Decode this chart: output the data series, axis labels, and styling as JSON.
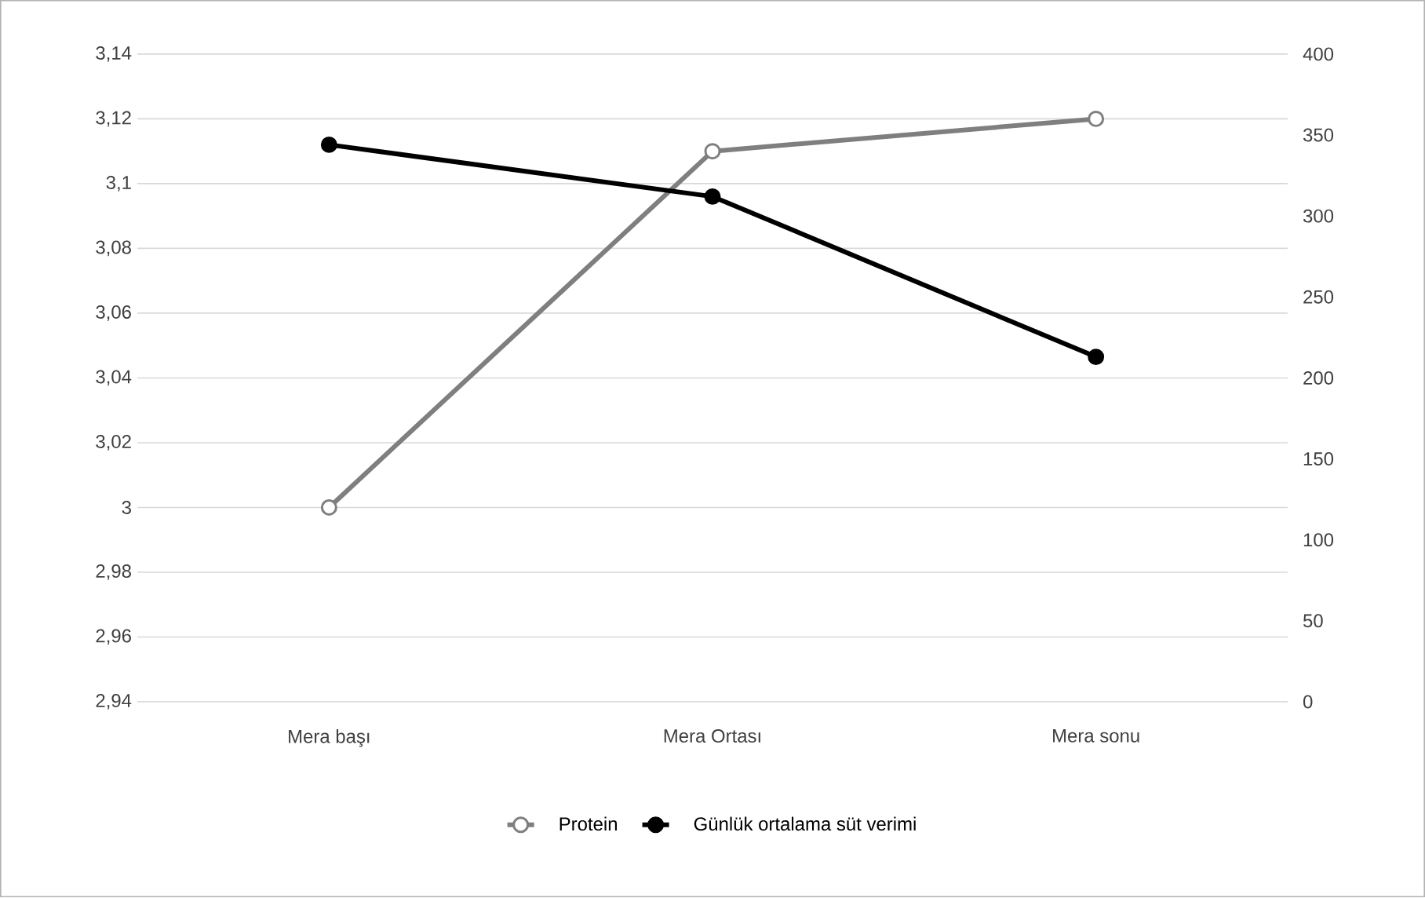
{
  "chart_data": {
    "type": "line",
    "categories": [
      "Mera başı",
      "Mera Ortası",
      "Mera sonu"
    ],
    "series": [
      {
        "name": "Protein",
        "color": "#7f7f7f",
        "values": [
          3.0,
          3.11,
          3.12
        ]
      },
      {
        "name": "Günlük ortalama süt verimi",
        "color": "#000000",
        "values": [
          344,
          312,
          213
        ],
        "axis": "y2"
      }
    ],
    "ylim": [
      2.94,
      3.14
    ],
    "yticks": [
      {
        "value": 2.94,
        "label": "2,94"
      },
      {
        "value": 2.96,
        "label": "2,96"
      },
      {
        "value": 2.98,
        "label": "2,98"
      },
      {
        "value": 3,
        "label": "3"
      },
      {
        "value": 3.02,
        "label": "3,02"
      },
      {
        "value": 3.04,
        "label": "3,04"
      },
      {
        "value": 3.06,
        "label": "3,06"
      },
      {
        "value": 3.08,
        "label": "3,08"
      },
      {
        "value": 3.1,
        "label": "3,1"
      },
      {
        "value": 3.12,
        "label": "3,12"
      },
      {
        "value": 3.14,
        "label": "3,14"
      }
    ],
    "y2lim": [
      0,
      400
    ],
    "y2ticks": [
      0,
      50,
      100,
      150,
      200,
      250,
      300,
      350,
      400
    ],
    "grid": true,
    "legend": "bottom",
    "marker": "circle",
    "line_style": "solid"
  }
}
